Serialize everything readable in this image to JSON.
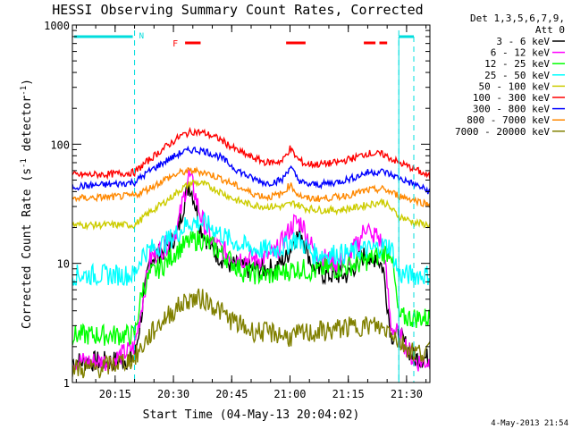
{
  "chart_data": {
    "type": "line",
    "title": "HESSI Observing Summary Count Rates, Corrected",
    "xlabel": "Start Time (04-May-13 20:04:02)",
    "ylabel": "Corrected Count Rate (s⁻¹ detector⁻¹)",
    "ylabel_base": "Corrected Count Rate (s",
    "ylabel_sup1": "-1",
    "ylabel_mid": " detector",
    "ylabel_sup2": "-1",
    "ylabel_end": ")",
    "x_minutes_range": [
      0,
      92
    ],
    "y_scale": "log",
    "ylim": [
      1,
      1000
    ],
    "x_ticks": [
      {
        "label": "20:15",
        "min": 11
      },
      {
        "label": "20:30",
        "min": 26
      },
      {
        "label": "20:45",
        "min": 41
      },
      {
        "label": "21:00",
        "min": 56
      },
      {
        "label": "21:15",
        "min": 71
      },
      {
        "label": "21:30",
        "min": 86
      }
    ],
    "y_ticks": [
      {
        "label": "1",
        "value": 1
      },
      {
        "label": "10",
        "value": 10
      },
      {
        "label": "100",
        "value": 100
      },
      {
        "label": "1000",
        "value": 1000
      }
    ],
    "legend_header1": "Det 1,3,5,6,7,9,",
    "legend_header2": "Att 0",
    "legend_position": "right",
    "markers": {
      "night_label": "N",
      "flare_label": "F",
      "night_boundaries_min": [
        16,
        84
      ],
      "flare_intervals_min": [
        [
          29,
          33
        ],
        [
          55,
          60
        ],
        [
          75,
          78
        ],
        [
          79,
          81
        ]
      ]
    },
    "series": [
      {
        "name": "3 - 6 keV",
        "color": "#000000",
        "x": [
          0,
          10,
          16,
          20,
          24,
          27,
          29,
          30,
          31,
          33,
          36,
          40,
          44,
          48,
          52,
          55,
          57,
          59,
          62,
          65,
          68,
          71,
          74,
          76,
          77,
          78,
          80,
          82,
          84,
          86,
          88,
          92
        ],
        "values": [
          1.5,
          1.5,
          1.6,
          11,
          13,
          18,
          35,
          46,
          38,
          20,
          13,
          10,
          9,
          9,
          9,
          11,
          16,
          18,
          9,
          8,
          8,
          8,
          11,
          12,
          9,
          12,
          9,
          2.5,
          2.5,
          2,
          1.6,
          1.6
        ]
      },
      {
        "name": "6 - 12 keV",
        "color": "#ff00ff",
        "x": [
          0,
          10,
          16,
          20,
          24,
          27,
          29,
          30,
          31,
          33,
          36,
          40,
          44,
          48,
          52,
          55,
          57,
          59,
          62,
          65,
          68,
          71,
          74,
          76,
          77,
          78,
          80,
          82,
          84,
          86,
          88,
          92
        ],
        "values": [
          1.5,
          1.5,
          2,
          11,
          14,
          20,
          40,
          55,
          45,
          25,
          15,
          12,
          11,
          11,
          12,
          17,
          22,
          22,
          13,
          11,
          10,
          11,
          16,
          22,
          15,
          18,
          14,
          3,
          2.5,
          2,
          1.5,
          1.5
        ]
      },
      {
        "name": "12 - 25 keV",
        "color": "#00ff00",
        "x": [
          0,
          10,
          16,
          18,
          20,
          24,
          27,
          30,
          33,
          36,
          40,
          44,
          48,
          52,
          55,
          57,
          59,
          62,
          65,
          68,
          71,
          74,
          77,
          80,
          82,
          84,
          86,
          88,
          92
        ],
        "values": [
          2.5,
          2.5,
          2.5,
          6,
          8,
          10,
          13,
          15,
          16,
          14,
          11,
          8.5,
          8,
          8,
          8.5,
          9,
          9,
          8.5,
          9,
          9,
          9.5,
          10,
          11,
          12,
          13,
          3.5,
          3.5,
          3.5,
          3.5
        ]
      },
      {
        "name": "25 - 50 keV",
        "color": "#00ffff",
        "x": [
          0,
          8,
          12,
          16,
          18,
          20,
          24,
          27,
          30,
          33,
          36,
          40,
          44,
          48,
          52,
          55,
          57,
          59,
          62,
          65,
          68,
          71,
          74,
          77,
          80,
          82,
          84,
          86,
          88,
          90,
          92
        ],
        "values": [
          8,
          8,
          8,
          8,
          12,
          13,
          15,
          18,
          22,
          22,
          20,
          16,
          14,
          13,
          13,
          14,
          16,
          15,
          12,
          12,
          12,
          12,
          13,
          13,
          14,
          14,
          8,
          8,
          8,
          8,
          8
        ]
      },
      {
        "name": "50 - 100 keV",
        "color": "#cccc00",
        "x": [
          0,
          10,
          16,
          20,
          24,
          28,
          31,
          34,
          38,
          42,
          46,
          50,
          54,
          57,
          60,
          64,
          68,
          72,
          76,
          80,
          84,
          88,
          92
        ],
        "values": [
          21,
          21,
          21,
          27,
          33,
          42,
          48,
          46,
          40,
          34,
          31,
          30,
          30,
          32,
          29,
          28,
          28,
          29,
          31,
          33,
          25,
          22,
          21
        ]
      },
      {
        "name": "100 - 300 keV",
        "color": "#ff0000",
        "x": [
          0,
          10,
          16,
          20,
          24,
          28,
          31,
          34,
          38,
          42,
          46,
          50,
          54,
          56,
          58,
          60,
          64,
          68,
          72,
          76,
          80,
          84,
          88,
          92
        ],
        "values": [
          55,
          56,
          58,
          75,
          95,
          118,
          128,
          124,
          110,
          90,
          78,
          70,
          72,
          92,
          75,
          68,
          68,
          70,
          76,
          84,
          82,
          70,
          62,
          53
        ]
      },
      {
        "name": "300 - 800 keV",
        "color": "#0000ff",
        "x": [
          0,
          10,
          16,
          20,
          24,
          28,
          31,
          34,
          38,
          42,
          46,
          50,
          54,
          56,
          58,
          60,
          64,
          68,
          72,
          76,
          80,
          84,
          88,
          92
        ],
        "values": [
          44,
          46,
          48,
          60,
          72,
          85,
          90,
          88,
          78,
          62,
          52,
          47,
          50,
          65,
          51,
          46,
          46,
          48,
          52,
          58,
          59,
          52,
          46,
          40
        ]
      },
      {
        "name": "800 - 7000 keV",
        "color": "#ff8800",
        "x": [
          0,
          10,
          16,
          20,
          24,
          28,
          31,
          34,
          38,
          42,
          46,
          50,
          54,
          56,
          58,
          60,
          64,
          68,
          72,
          76,
          80,
          84,
          88,
          92
        ],
        "values": [
          35,
          36,
          37,
          43,
          51,
          58,
          60,
          58,
          52,
          45,
          39,
          36,
          38,
          46,
          38,
          35,
          35,
          36,
          38,
          41,
          42,
          37,
          34,
          31
        ]
      },
      {
        "name": "7000 - 20000 keV",
        "color": "#808000",
        "x": [
          0,
          6,
          10,
          16,
          20,
          22,
          24,
          26,
          28,
          30,
          32,
          34,
          36,
          38,
          40,
          42,
          44,
          46,
          48,
          50,
          52,
          54,
          56,
          58,
          60,
          62,
          64,
          66,
          68,
          70,
          72,
          74,
          76,
          78,
          80,
          82,
          84,
          86,
          88,
          90,
          92
        ],
        "values": [
          1.3,
          1.3,
          1.4,
          1.6,
          2.5,
          3,
          3.5,
          4,
          4.5,
          5,
          5,
          5,
          4.5,
          4,
          3.5,
          3.2,
          2.9,
          2.7,
          2.7,
          2.6,
          2.6,
          2.5,
          2.4,
          2.5,
          2.6,
          2.6,
          2.7,
          2.7,
          2.8,
          2.9,
          2.9,
          3,
          3,
          3,
          2.8,
          2.8,
          2.2,
          2,
          1.8,
          1.8,
          1.8
        ]
      }
    ]
  },
  "footer_date": "4-May-2013 21:54"
}
